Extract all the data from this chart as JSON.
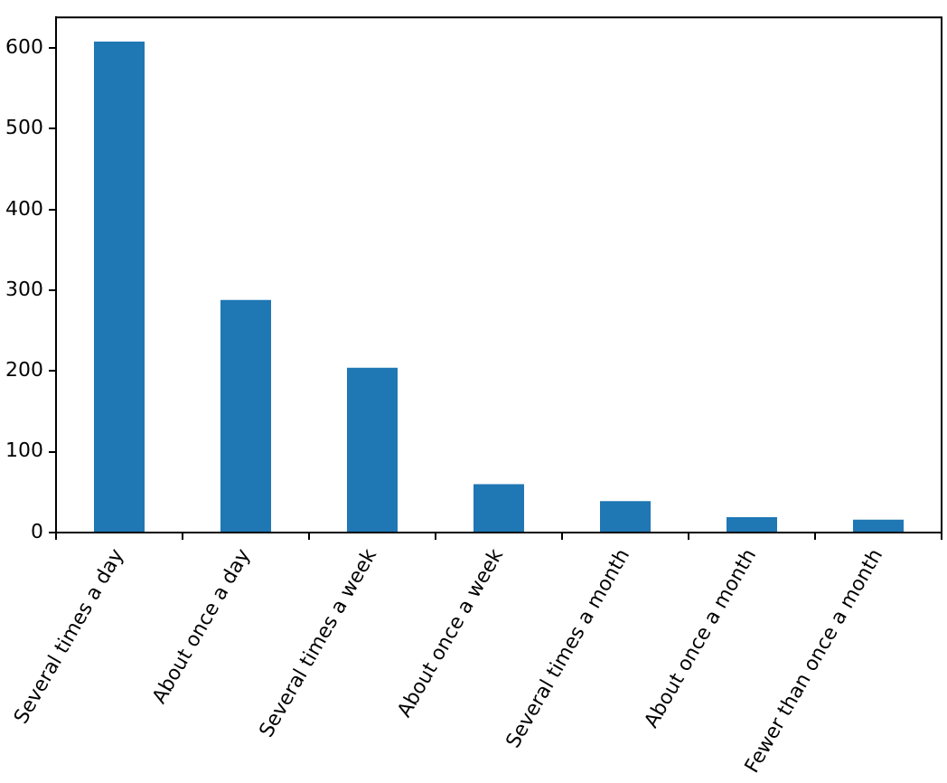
{
  "chart_data": {
    "type": "bar",
    "categories": [
      "Several times a day",
      "About once a day",
      "Several times a week",
      "About once a week",
      "Several times a month",
      "About once a month",
      "Fewer than once a month"
    ],
    "values": [
      608,
      288,
      204,
      60,
      39,
      19,
      16
    ],
    "color": "#1f77b4",
    "ylim": [
      0,
      638
    ],
    "yticks": [
      0,
      100,
      200,
      300,
      400,
      500,
      600
    ],
    "grid": false
  }
}
